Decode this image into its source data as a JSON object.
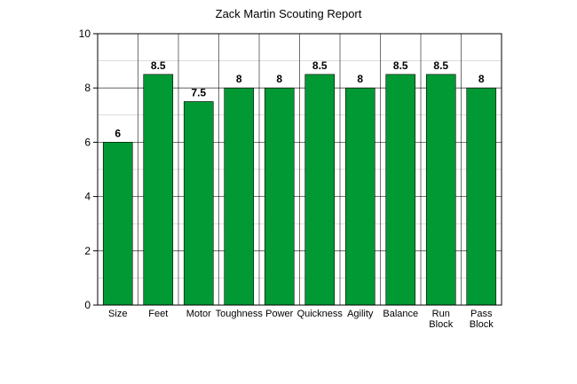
{
  "chart_data": {
    "type": "bar",
    "title": "Zack Martin Scouting Report",
    "xlabel": "",
    "ylabel": "",
    "categories": [
      [
        "Size"
      ],
      [
        "Feet"
      ],
      [
        "Motor"
      ],
      [
        "Toughness"
      ],
      [
        "Power"
      ],
      [
        "Quickness"
      ],
      [
        "Agility"
      ],
      [
        "Balance"
      ],
      [
        "Run",
        "Block"
      ],
      [
        "Pass",
        "Block"
      ]
    ],
    "values": [
      6,
      8.5,
      7.5,
      8,
      8,
      8.5,
      8,
      8.5,
      8.5,
      8
    ],
    "data_labels": [
      "6",
      "8.5",
      "7.5",
      "8",
      "8",
      "8.5",
      "8",
      "8.5",
      "8.5",
      "8"
    ],
    "ylim": [
      0,
      10
    ],
    "yticks": [
      0,
      2,
      4,
      6,
      8,
      10
    ],
    "grid": true,
    "legend": "none",
    "colors": {
      "bar_fill": "#009933",
      "bar_stroke": "#000000",
      "grid": "#000000",
      "background": "#ffffff"
    }
  }
}
